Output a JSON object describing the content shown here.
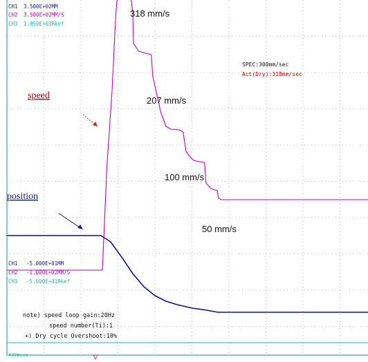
{
  "chart_data": {
    "type": "line",
    "channel_readout_top": [
      {
        "label": "CH1",
        "value": "3.500E+02MM",
        "color": "#1a1a8c"
      },
      {
        "label": "CH2",
        "value": "3.500E+02MM/S",
        "color": "#c000c0"
      },
      {
        "label": "CH3",
        "value": "1.950E+03Rkef",
        "color": "#20b8a0"
      }
    ],
    "channel_readout_bottom": [
      {
        "label": "CH1",
        "value": "-5.000E+01MM",
        "color": "#1a1a8c"
      },
      {
        "label": "CH2",
        "value": "-1.000E+02MM/S",
        "color": "#c000c0"
      },
      {
        "label": "CH3",
        "value": "-5.000E+01Rkef",
        "color": "#20b8a0"
      }
    ],
    "spec_text": "SPEC:300mm/sec",
    "act_text": "Act(Dry):318mm/sec",
    "speed_label": "speed",
    "position_label": "position",
    "peak_annotations": [
      {
        "text": "318  mm/s",
        "value": 318
      },
      {
        "text": "207  mm/s",
        "value": 207
      },
      {
        "text": "100  mm/s",
        "value": 100
      },
      {
        "text": "50  mm/s",
        "value": 50
      }
    ],
    "notes": [
      "note) speed loop gain:20Hz",
      "speed number(Ti):1",
      "+) Dry cycle Overshoot:10%"
    ],
    "time_div": "400msec",
    "grid": true,
    "series": [
      {
        "name": "speed",
        "color": "#c000c0",
        "points": [
          [
            0.0,
            -100
          ],
          [
            1.29,
            -100
          ],
          [
            1.31,
            -50
          ],
          [
            1.35,
            50
          ],
          [
            1.42,
            158
          ],
          [
            1.47,
            268
          ],
          [
            1.5,
            308
          ],
          [
            1.53,
            318
          ],
          [
            1.58,
            320
          ],
          [
            1.62,
            318
          ],
          [
            1.65,
            308
          ],
          [
            1.68,
            290
          ],
          [
            1.7,
            273
          ],
          [
            1.71,
            228
          ],
          [
            1.78,
            217
          ],
          [
            1.87,
            214
          ],
          [
            1.95,
            212
          ],
          [
            1.97,
            181
          ],
          [
            2.02,
            157
          ],
          [
            2.08,
            128
          ],
          [
            2.15,
            108
          ],
          [
            2.22,
            104
          ],
          [
            2.33,
            103
          ],
          [
            2.38,
            100
          ],
          [
            2.42,
            72
          ],
          [
            2.46,
            66
          ],
          [
            2.52,
            59
          ],
          [
            2.6,
            57
          ],
          [
            2.67,
            56
          ],
          [
            2.69,
            26
          ],
          [
            2.76,
            18
          ],
          [
            2.84,
            15
          ],
          [
            2.86,
            4
          ],
          [
            2.9,
            2
          ],
          [
            4.88,
            2
          ]
        ]
      },
      {
        "name": "position",
        "color": "#101080",
        "points": [
          [
            0.0,
            -50
          ],
          [
            1.27,
            -50
          ],
          [
            1.4,
            -59
          ],
          [
            1.55,
            -81
          ],
          [
            1.7,
            -105
          ],
          [
            1.85,
            -124
          ],
          [
            2.0,
            -137
          ],
          [
            2.15,
            -145
          ],
          [
            2.3,
            -150
          ],
          [
            2.5,
            -155
          ],
          [
            2.7,
            -158
          ],
          [
            2.85,
            -161
          ],
          [
            4.88,
            -161
          ]
        ]
      },
      {
        "name": "CH3",
        "color": "#20b8a0",
        "points": [
          [
            0.0,
            -205
          ],
          [
            1.35,
            -205
          ],
          [
            4.88,
            -205
          ]
        ]
      }
    ]
  }
}
